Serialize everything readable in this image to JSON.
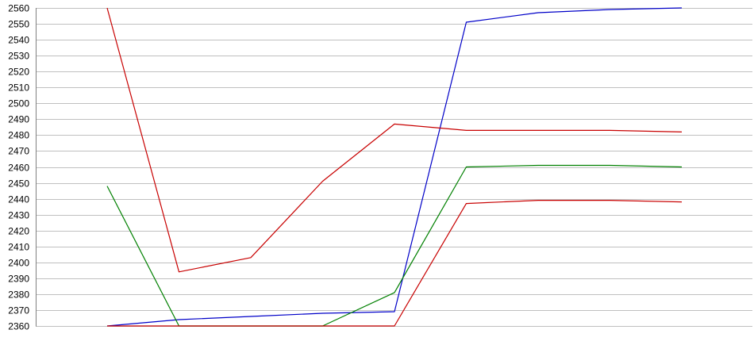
{
  "chart_data": {
    "type": "line",
    "title": "",
    "xlabel": "",
    "ylabel": "",
    "grid": true,
    "legend": "none",
    "x": [
      1,
      2,
      3,
      4,
      5,
      6,
      7,
      8,
      9
    ],
    "ylim": [
      2360,
      2560
    ],
    "yticks": [
      2360,
      2370,
      2380,
      2390,
      2400,
      2410,
      2420,
      2430,
      2440,
      2450,
      2460,
      2470,
      2480,
      2490,
      2500,
      2510,
      2520,
      2530,
      2540,
      2550,
      2560
    ],
    "ytick_labels": [
      "2360",
      "2370",
      "2380",
      "2390",
      "2400",
      "2410",
      "2420",
      "2430",
      "2440",
      "2450",
      "2460",
      "2470",
      "2480",
      "2490",
      "2500",
      "2510",
      "2520",
      "2530",
      "2540",
      "2550",
      "2560"
    ],
    "series": [
      {
        "color": "#0000c8",
        "values": [
          2360,
          2364,
          2366,
          2368,
          2369,
          2551,
          2557,
          2559,
          2560
        ]
      },
      {
        "color": "#c80000",
        "values": [
          2560,
          2394,
          2403,
          2451,
          2487,
          2483,
          2483,
          2483,
          2482
        ]
      },
      {
        "color": "#008000",
        "values": [
          2448,
          2360,
          2360,
          2360,
          2381,
          2460,
          2461,
          2461,
          2460
        ]
      },
      {
        "color": "#c80000",
        "values": [
          2360,
          2360,
          2360,
          2360,
          2360,
          2437,
          2439,
          2439,
          2438
        ]
      }
    ]
  }
}
